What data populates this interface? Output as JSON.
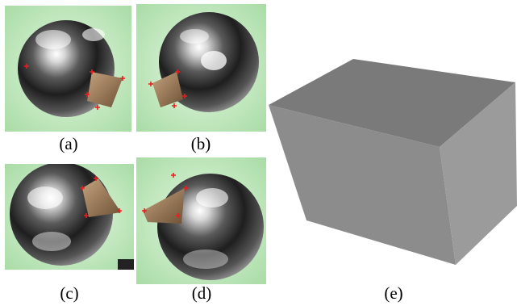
{
  "figure": {
    "panels": [
      {
        "id": "a",
        "caption": "(a)",
        "image": "photo of a chrome sphere with a reflected box face marked by red cross points"
      },
      {
        "id": "b",
        "caption": "(b)",
        "image": "photo of a chrome sphere with a reflected box face marked by red cross points"
      },
      {
        "id": "c",
        "caption": "(c)",
        "image": "photo of a chrome sphere with a reflected box face marked by red cross points"
      },
      {
        "id": "d",
        "caption": "(d)",
        "image": "photo of a chrome sphere with a reflected box face marked by red cross points"
      },
      {
        "id": "e",
        "caption": "(e)",
        "image": "rendered gray 3D box"
      }
    ],
    "colors": {
      "background_green": "#c8ecc4",
      "marker_red": "#e81e1e",
      "box_top": "#7a7a7a",
      "box_front": "#8c8c8c",
      "box_side": "#9a9a9a"
    }
  }
}
